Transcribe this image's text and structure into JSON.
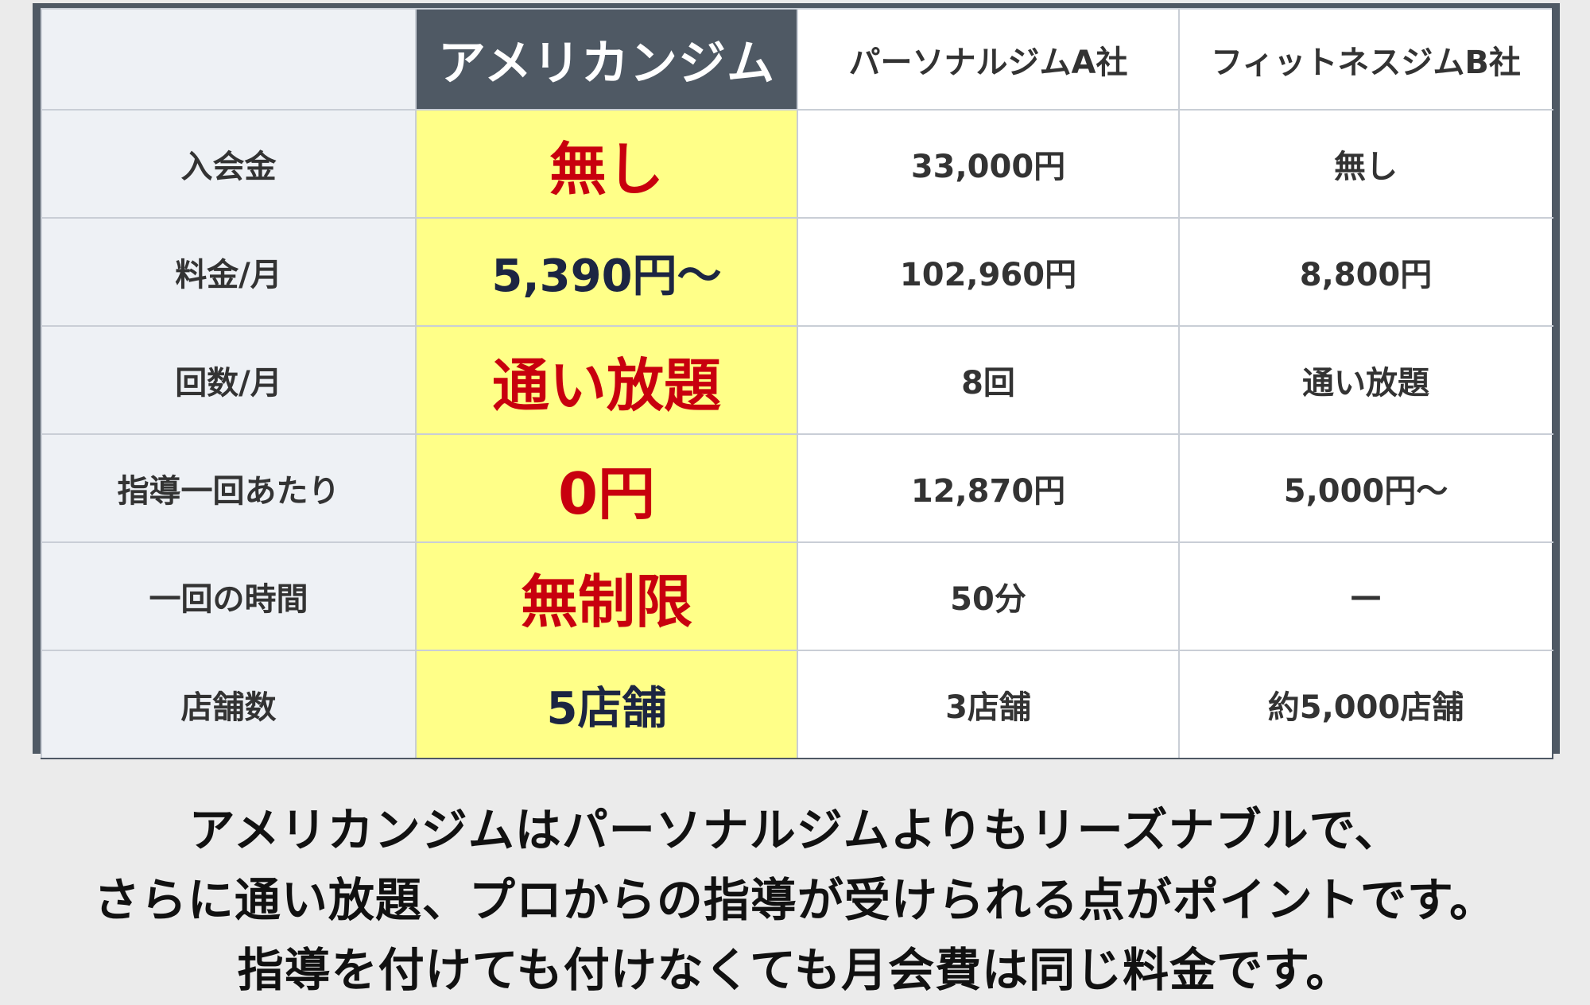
{
  "table": {
    "headers": [
      "",
      "アメリカンジム",
      "パーソナルジムA社",
      "フィットネスジムB社"
    ],
    "rows": [
      {
        "label": "入会金",
        "featured": "無し",
        "a": "33,000円",
        "b": "無し"
      },
      {
        "label": "料金/月",
        "featured": "5,390円〜",
        "a": "102,960円",
        "b": "8,800円"
      },
      {
        "label": "回数/月",
        "featured": "通い放題",
        "a": "8回",
        "b": "通い放題"
      },
      {
        "label": "指導一回あたり",
        "featured": "0円",
        "a": "12,870円",
        "b": "5,000円〜"
      },
      {
        "label": "一回の時間",
        "featured": "無制限",
        "a": "50分",
        "b": "—"
      },
      {
        "label": "店舗数",
        "featured": "5店舗",
        "a": "3店舗",
        "b": "約5,000店舗"
      }
    ]
  },
  "caption": {
    "lines": [
      "アメリカンジムはパーソナルジムよりもリーズナブルで、",
      "さらに通い放題、プロからの指導が受けられる点がポイントです。",
      "指導を付けても付けなくても月会費は同じ料金です。"
    ]
  },
  "colors": {
    "frame": "#4f5964",
    "highlight": "#ffff88",
    "accent_red": "#c8000e",
    "accent_navy": "#1c2542",
    "label_bg": "#eef1f5",
    "page_bg": "#ebebeb"
  }
}
